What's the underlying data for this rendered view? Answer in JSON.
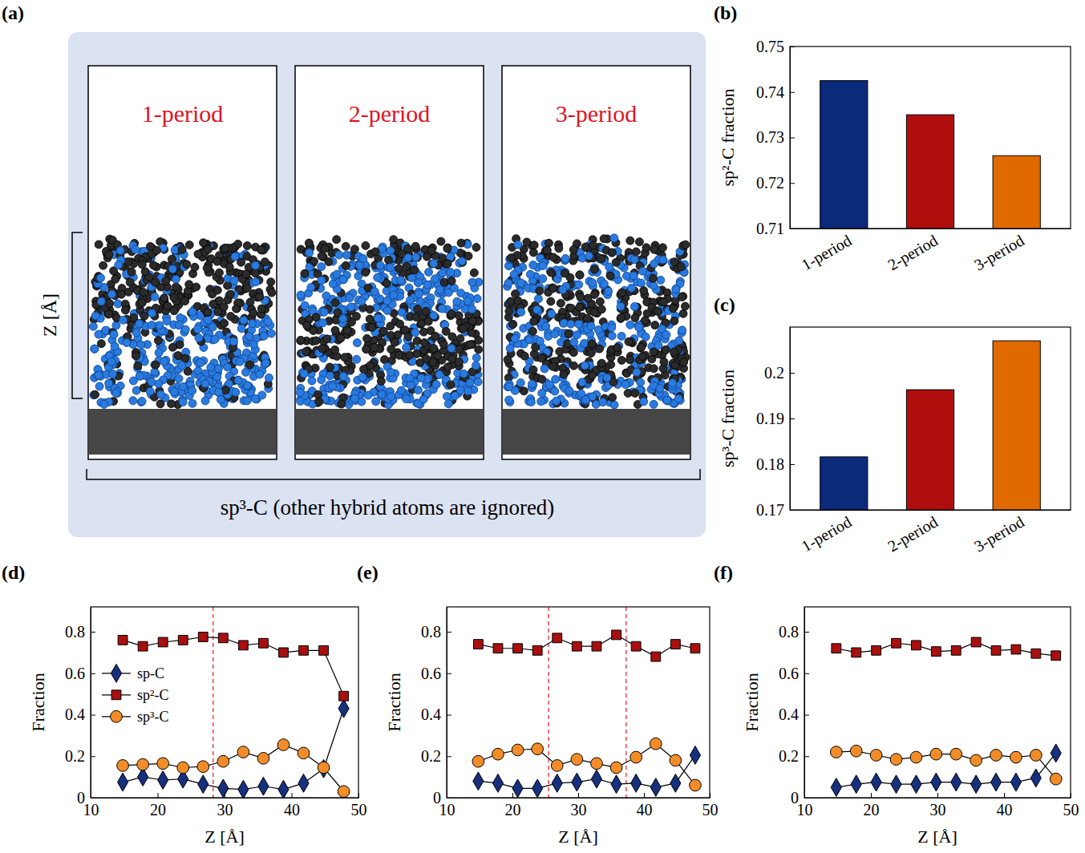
{
  "chart_data": [
    {
      "type": "diagram",
      "panel": "(a)",
      "labels": [
        "1-period",
        "2-period",
        "3-period"
      ],
      "ylabel": "Z [Å]",
      "xlabel": "sp³-C (other hybrid atoms are ignored)"
    },
    {
      "type": "bar",
      "panel": "(b)",
      "categories": [
        "1-period",
        "2-period",
        "3-period"
      ],
      "values": [
        0.7425,
        0.735,
        0.726
      ],
      "colors": [
        "#0b2a7a",
        "#b00d0d",
        "#e06a00"
      ],
      "ylabel": "sp²-C fraction",
      "ylim": [
        0.71,
        0.75
      ],
      "yticks": [
        0.71,
        0.72,
        0.73,
        0.74,
        0.75
      ]
    },
    {
      "type": "bar",
      "panel": "(c)",
      "categories": [
        "1-period",
        "2-period",
        "3-period"
      ],
      "values": [
        0.1816,
        0.1963,
        0.207
      ],
      "colors": [
        "#0b2a7a",
        "#b00d0d",
        "#e06a00"
      ],
      "ylabel": "sp³-C fraction",
      "ylim": [
        0.17,
        0.21
      ],
      "yticks": [
        0.17,
        0.18,
        0.19,
        0.2
      ]
    },
    {
      "type": "line",
      "panel": "(d)",
      "x": [
        14.8,
        17.8,
        20.8,
        23.8,
        26.8,
        29.8,
        32.8,
        35.8,
        38.8,
        41.8,
        44.8,
        47.8
      ],
      "series": [
        {
          "name": "sp-C",
          "color": "#16307e",
          "marker": "diamond",
          "values": [
            0.075,
            0.1,
            0.085,
            0.09,
            0.065,
            0.045,
            0.04,
            0.055,
            0.04,
            0.07,
            0.14,
            0.43
          ]
        },
        {
          "name": "sp²-C",
          "color": "#a80f0f",
          "marker": "square",
          "values": [
            0.76,
            0.73,
            0.75,
            0.76,
            0.775,
            0.77,
            0.735,
            0.745,
            0.7,
            0.71,
            0.71,
            0.49
          ]
        },
        {
          "name": "sp³-C",
          "color": "#f28c28",
          "marker": "circle",
          "values": [
            0.155,
            0.16,
            0.165,
            0.145,
            0.15,
            0.175,
            0.22,
            0.19,
            0.255,
            0.215,
            0.145,
            0.03
          ]
        }
      ],
      "vlines": [
        28.3
      ],
      "xlabel": "Z [Å]",
      "ylabel": "Fraction",
      "xlim": [
        10,
        50
      ],
      "xticks": [
        10,
        20,
        30,
        40,
        50
      ],
      "ylim": [
        0,
        0.92
      ],
      "yticks": [
        0,
        0.2,
        0.4,
        0.6,
        0.8
      ],
      "legend": "left"
    },
    {
      "type": "line",
      "panel": "(e)",
      "x": [
        14.8,
        17.8,
        20.8,
        23.8,
        26.8,
        29.8,
        32.8,
        35.8,
        38.8,
        41.8,
        44.8,
        47.8
      ],
      "series": [
        {
          "color": "#16307e",
          "marker": "diamond",
          "values": [
            0.08,
            0.07,
            0.045,
            0.045,
            0.07,
            0.075,
            0.09,
            0.065,
            0.07,
            0.05,
            0.07,
            0.205
          ]
        },
        {
          "color": "#a80f0f",
          "marker": "square",
          "values": [
            0.74,
            0.72,
            0.72,
            0.71,
            0.77,
            0.73,
            0.73,
            0.785,
            0.73,
            0.68,
            0.74,
            0.72
          ]
        },
        {
          "color": "#f28c28",
          "marker": "circle",
          "values": [
            0.175,
            0.21,
            0.23,
            0.235,
            0.155,
            0.185,
            0.165,
            0.145,
            0.195,
            0.26,
            0.18,
            0.06
          ]
        }
      ],
      "vlines": [
        25.5,
        37.3
      ],
      "xlabel": "Z [Å]",
      "ylabel": "Fraction",
      "xlim": [
        10,
        50
      ],
      "xticks": [
        10,
        20,
        30,
        40,
        50
      ],
      "ylim": [
        0,
        0.92
      ],
      "yticks": [
        0,
        0.2,
        0.4,
        0.6,
        0.8
      ]
    },
    {
      "type": "line",
      "panel": "(f)",
      "x": [
        14.8,
        17.8,
        20.8,
        23.8,
        26.8,
        29.8,
        32.8,
        35.8,
        38.8,
        41.8,
        44.8,
        47.8
      ],
      "series": [
        {
          "color": "#16307e",
          "marker": "diamond",
          "values": [
            0.05,
            0.065,
            0.075,
            0.065,
            0.065,
            0.075,
            0.075,
            0.065,
            0.075,
            0.075,
            0.095,
            0.215
          ]
        },
        {
          "color": "#a80f0f",
          "marker": "square",
          "values": [
            0.72,
            0.7,
            0.71,
            0.745,
            0.735,
            0.705,
            0.71,
            0.75,
            0.71,
            0.715,
            0.695,
            0.685
          ]
        },
        {
          "color": "#f28c28",
          "marker": "circle",
          "values": [
            0.22,
            0.225,
            0.205,
            0.185,
            0.195,
            0.21,
            0.21,
            0.18,
            0.205,
            0.195,
            0.205,
            0.09
          ]
        }
      ],
      "xlabel": "Z [Å]",
      "ylabel": "Fraction",
      "xlim": [
        10,
        50
      ],
      "xticks": [
        10,
        20,
        30,
        40,
        50
      ],
      "ylim": [
        0,
        0.92
      ],
      "yticks": [
        0,
        0.2,
        0.4,
        0.6,
        0.8
      ]
    }
  ]
}
